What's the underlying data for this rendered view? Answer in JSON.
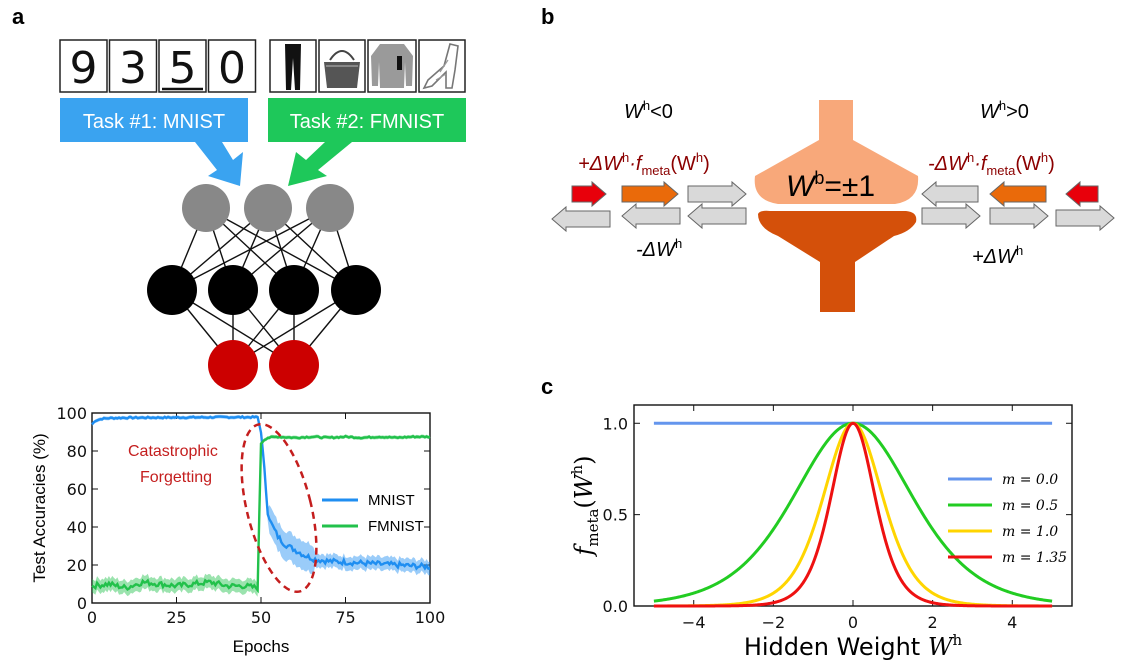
{
  "panels": {
    "a": {
      "label": "a",
      "task1": "Task #1: MNIST",
      "task2": "Task #2: FMNIST",
      "mnist_digits": [
        "9",
        "3",
        "5",
        "0"
      ],
      "fmnist_items": [
        "trousers",
        "bag",
        "pullover",
        "sandal"
      ],
      "colors": {
        "task1": "#3aa3f0",
        "task2": "#1ec85a",
        "input": "#888888",
        "hidden": "#000000",
        "output": "#cc0000"
      },
      "annotation_line1": "Catastrophic",
      "annotation_line2": "Forgetting"
    },
    "b": {
      "label": "b",
      "left_cond": "W",
      "left_cond_sup": "h",
      "left_cond_rest": "<0",
      "right_cond": "W",
      "right_cond_sup": "h",
      "right_cond_rest": ">0",
      "left_red_pre": "+ΔW",
      "left_red_h": "h",
      "left_red_dot": "·f",
      "left_red_sub": "meta",
      "left_red_arg": "(W",
      "left_red_arg_sup": "h",
      "left_red_close": ")",
      "right_red_pre": "-ΔW",
      "right_red_h": "h",
      "right_red_dot": "·f",
      "right_red_sub": "meta",
      "right_red_arg": "(W",
      "right_red_arg_sup": "h",
      "right_red_close": ")",
      "left_black": "-ΔW",
      "left_black_sup": "h",
      "right_black": "+ΔW",
      "right_black_sup": "h",
      "center_W": "W",
      "center_sup": "b",
      "center_rest": "=±1",
      "colors": {
        "funnel_top": "#f8a87a",
        "funnel_bottom": "#d4500a",
        "red_text": "#8b0000",
        "arrow_red": "#e8000b",
        "arrow_orange": "#ea6a0a",
        "arrow_grey": "#d9d9d9"
      }
    },
    "c": {
      "label": "c"
    }
  },
  "chart_data": [
    {
      "type": "line",
      "panel": "a",
      "xlabel": "Epochs",
      "ylabel": "Test Accuracies (%)",
      "xlim": [
        0,
        100
      ],
      "ylim": [
        0,
        100
      ],
      "xticks": [
        "0",
        "25",
        "50",
        "75",
        "100"
      ],
      "yticks": [
        "0",
        "20",
        "40",
        "60",
        "80",
        "100"
      ],
      "legend": "right",
      "series": [
        {
          "name": "MNIST",
          "color": "#1f8ef1",
          "x": [
            0,
            1,
            2,
            3,
            5,
            10,
            20,
            30,
            40,
            49,
            50,
            51,
            52,
            53,
            55,
            57,
            60,
            63,
            66,
            70,
            75,
            80,
            85,
            90,
            95,
            100
          ],
          "y": [
            94,
            96,
            96.5,
            97,
            97.3,
            97.5,
            97.6,
            97.7,
            97.8,
            97.8,
            90,
            70,
            48,
            42,
            35,
            31,
            28,
            25,
            23,
            22,
            21.5,
            21,
            20.5,
            20,
            19.5,
            19
          ]
        },
        {
          "name": "FMNIST",
          "color": "#22c14b",
          "x": [
            0,
            5,
            10,
            15,
            20,
            25,
            30,
            35,
            40,
            45,
            49,
            50,
            51,
            52,
            55,
            60,
            65,
            70,
            75,
            80,
            85,
            90,
            95,
            100
          ],
          "y": [
            9,
            10,
            8,
            11,
            10,
            9,
            10,
            11,
            9,
            9,
            8,
            84,
            86,
            87,
            87.5,
            87,
            87.5,
            87,
            87.5,
            87,
            87.5,
            87,
            87.5,
            87.5
          ]
        }
      ]
    },
    {
      "type": "line",
      "panel": "c",
      "xlabel": "Hidden Weight W",
      "xlabel_sup": "h",
      "ylabel": "f",
      "ylabel_sub": "meta",
      "ylabel_arg": "(W",
      "ylabel_arg_sup": "h",
      "ylabel_close": ")",
      "xlim": [
        -5.5,
        5.5
      ],
      "ylim": [
        0,
        1.0
      ],
      "xticks": [
        "−4",
        "−2",
        "0",
        "2",
        "4"
      ],
      "yticks": [
        "0.0",
        "0.5",
        "1.0"
      ],
      "legend": "right",
      "formula": "1 - tanh^2(m * W)",
      "series": [
        {
          "name": "m = 0.0",
          "m": 0.0,
          "color": "#6495ed"
        },
        {
          "name": "m = 0.5",
          "m": 0.5,
          "color": "#22cc22"
        },
        {
          "name": "m = 1.0",
          "m": 1.0,
          "color": "#ffd500"
        },
        {
          "name": "m = 1.35",
          "m": 1.35,
          "color": "#ee1111"
        }
      ]
    }
  ]
}
